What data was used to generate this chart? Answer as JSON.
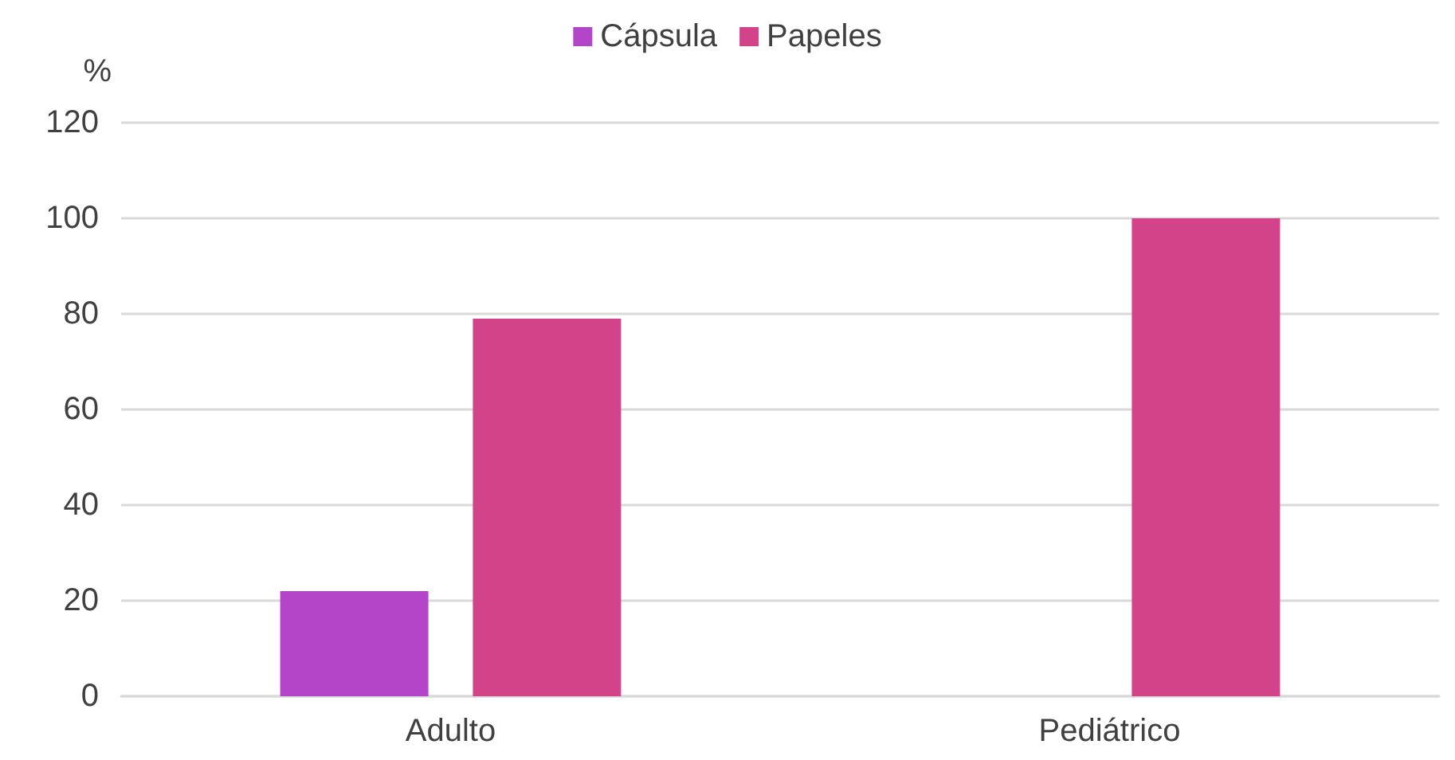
{
  "chart_data": {
    "type": "bar",
    "ylabel": "%",
    "categories": [
      "Adulto",
      "Pediátrico"
    ],
    "series": [
      {
        "name": "Cápsula",
        "color": "#b444c8",
        "values": [
          22,
          0
        ]
      },
      {
        "name": "Papeles",
        "color": "#d2438a",
        "values": [
          79,
          100
        ]
      }
    ],
    "ylim": [
      0,
      120
    ],
    "yticks": [
      0,
      20,
      40,
      60,
      80,
      100,
      120
    ],
    "grid": "y",
    "legend": "top"
  }
}
